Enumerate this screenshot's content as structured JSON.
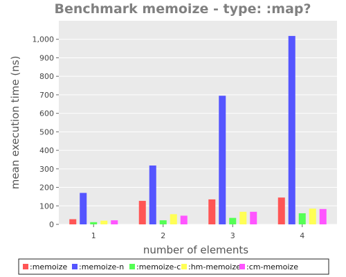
{
  "chart_data": {
    "type": "bar",
    "title": "Benchmark memoize - type: :map?",
    "xlabel": "number of elements",
    "ylabel": "mean execution time (ns)",
    "categories": [
      "1",
      "2",
      "3",
      "4"
    ],
    "ylim": [
      0,
      1100
    ],
    "yticks": [
      0,
      100,
      200,
      300,
      400,
      500,
      600,
      700,
      800,
      900,
      1000
    ],
    "ytick_labels": [
      "0",
      "100",
      "200",
      "300",
      "400",
      "500",
      "600",
      "700",
      "800",
      "900",
      "1,000"
    ],
    "grid": true,
    "legend_position": "bottom",
    "series": [
      {
        "name": ":memoize",
        "color": "#ff5555",
        "values": [
          28,
          127,
          135,
          145
        ]
      },
      {
        "name": ":memoize-n",
        "color": "#5555ff",
        "values": [
          170,
          318,
          695,
          1018
        ]
      },
      {
        "name": ":memoize-c",
        "color": "#55ff55",
        "values": [
          12,
          22,
          35,
          60
        ]
      },
      {
        "name": ":hm-memoize",
        "color": "#ffff55",
        "values": [
          20,
          55,
          68,
          85
        ]
      },
      {
        "name": ":cm-memoize",
        "color": "#ff55ff",
        "values": [
          22,
          47,
          68,
          83
        ]
      }
    ]
  }
}
